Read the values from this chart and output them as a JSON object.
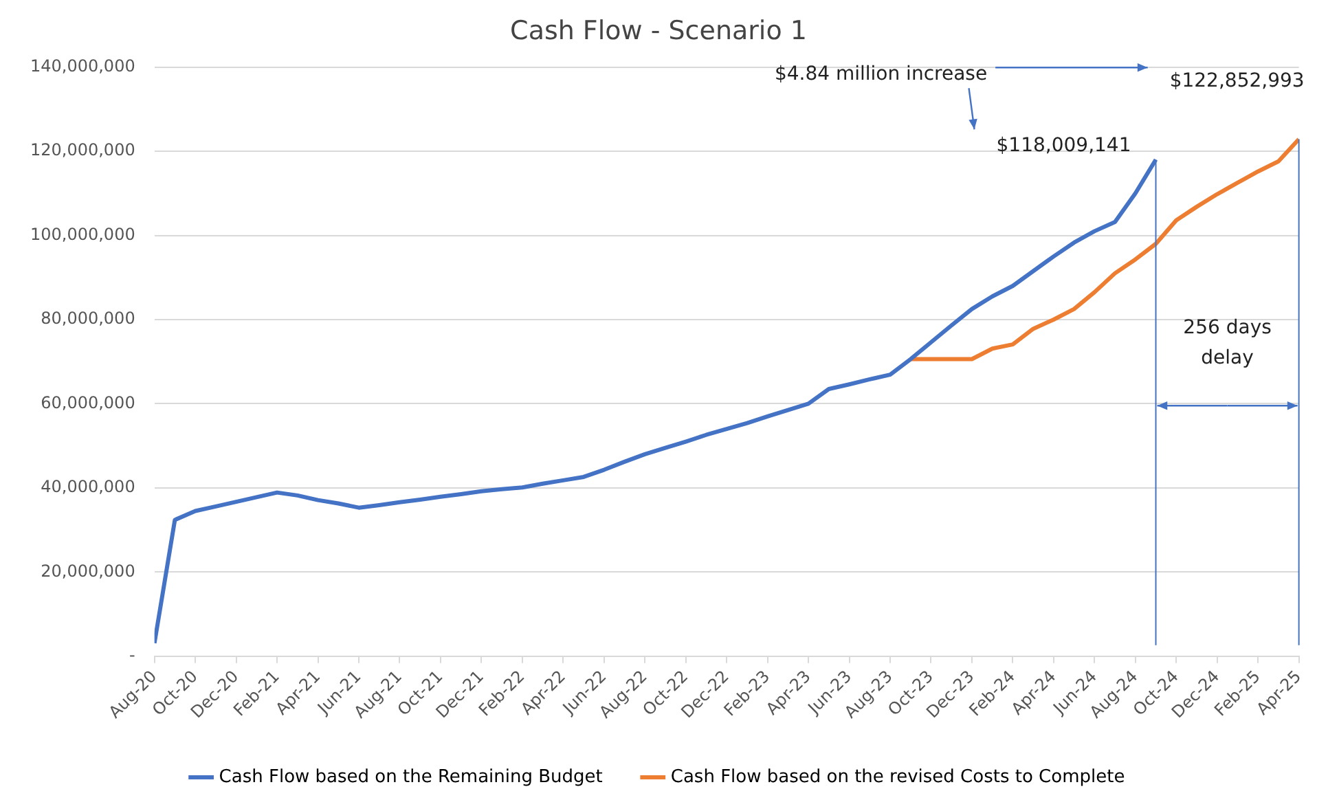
{
  "chart_data": {
    "type": "line",
    "title": "Cash Flow - Scenario 1",
    "x": [
      "2020-08",
      "2020-09",
      "2020-10",
      "2020-11",
      "2020-12",
      "2021-01",
      "2021-02",
      "2021-03",
      "2021-04",
      "2021-05",
      "2021-06",
      "2021-07",
      "2021-08",
      "2021-09",
      "2021-10",
      "2021-11",
      "2021-12",
      "2022-01",
      "2022-02",
      "2022-03",
      "2022-04",
      "2022-05",
      "2022-06",
      "2022-07",
      "2022-08",
      "2022-09",
      "2022-10",
      "2022-11",
      "2022-12",
      "2023-01",
      "2023-02",
      "2023-03",
      "2023-04",
      "2023-05",
      "2023-06",
      "2023-07",
      "2023-08",
      "2023-09",
      "2023-10",
      "2023-11",
      "2023-12",
      "2024-01",
      "2024-02",
      "2024-03",
      "2024-04",
      "2024-05",
      "2024-06",
      "2024-07",
      "2024-08",
      "2024-09",
      "2024-10",
      "2024-11",
      "2024-12",
      "2025-01",
      "2025-02",
      "2025-03",
      "2025-04"
    ],
    "series": [
      {
        "name": "Cash Flow based on the Remaining Budget",
        "color": "#4472c4",
        "values": [
          3100000,
          32400000,
          34500000,
          35600000,
          36700000,
          37800000,
          38900000,
          38200000,
          37100000,
          36300000,
          35300000,
          35900000,
          36600000,
          37200000,
          37900000,
          38500000,
          39200000,
          39700000,
          40100000,
          41000000,
          41800000,
          42600000,
          44300000,
          46200000,
          48000000,
          49500000,
          51000000,
          52600000,
          54000000,
          55400000,
          57000000,
          58500000,
          60000000,
          63500000,
          64600000,
          65800000,
          66900000,
          70600000,
          74600000,
          78600000,
          82500000,
          85500000,
          88000000,
          91500000,
          95000000,
          98300000,
          101000000,
          103200000,
          110000000,
          118009141,
          null,
          null,
          null,
          null,
          null,
          null,
          null
        ]
      },
      {
        "name": "Cash Flow based on the revised Costs to Complete",
        "color": "#ed7d31",
        "values": [
          null,
          null,
          null,
          null,
          null,
          null,
          null,
          null,
          null,
          null,
          null,
          null,
          null,
          null,
          null,
          null,
          null,
          null,
          null,
          null,
          null,
          null,
          null,
          null,
          null,
          null,
          null,
          null,
          null,
          null,
          null,
          null,
          null,
          null,
          null,
          null,
          null,
          70600000,
          70600000,
          70600000,
          70600000,
          73100000,
          74100000,
          77800000,
          80000000,
          82500000,
          86500000,
          91000000,
          94300000,
          98000000,
          103600000,
          106800000,
          109800000,
          112500000,
          115200000,
          117600000,
          122852993
        ]
      }
    ],
    "xlim": [
      "2020-08",
      "2025-04"
    ],
    "xticks": [
      {
        "value": "2020-08",
        "label": "Aug-20"
      },
      {
        "value": "2020-10",
        "label": "Oct-20"
      },
      {
        "value": "2020-12",
        "label": "Dec-20"
      },
      {
        "value": "2021-02",
        "label": "Feb-21"
      },
      {
        "value": "2021-04",
        "label": "Apr-21"
      },
      {
        "value": "2021-06",
        "label": "Jun-21"
      },
      {
        "value": "2021-08",
        "label": "Aug-21"
      },
      {
        "value": "2021-10",
        "label": "Oct-21"
      },
      {
        "value": "2021-12",
        "label": "Dec-21"
      },
      {
        "value": "2022-02",
        "label": "Feb-22"
      },
      {
        "value": "2022-04",
        "label": "Apr-22"
      },
      {
        "value": "2022-06",
        "label": "Jun-22"
      },
      {
        "value": "2022-08",
        "label": "Aug-22"
      },
      {
        "value": "2022-10",
        "label": "Oct-22"
      },
      {
        "value": "2022-12",
        "label": "Dec-22"
      },
      {
        "value": "2023-02",
        "label": "Feb-23"
      },
      {
        "value": "2023-04",
        "label": "Apr-23"
      },
      {
        "value": "2023-06",
        "label": "Jun-23"
      },
      {
        "value": "2023-08",
        "label": "Aug-23"
      },
      {
        "value": "2023-10",
        "label": "Oct-23"
      },
      {
        "value": "2023-12",
        "label": "Dec-23"
      },
      {
        "value": "2024-02",
        "label": "Feb-24"
      },
      {
        "value": "2024-04",
        "label": "Apr-24"
      },
      {
        "value": "2024-06",
        "label": "Jun-24"
      },
      {
        "value": "2024-08",
        "label": "Aug-24"
      },
      {
        "value": "2024-10",
        "label": "Oct-24"
      },
      {
        "value": "2024-12",
        "label": "Dec-24"
      },
      {
        "value": "2025-02",
        "label": "Feb-25"
      },
      {
        "value": "2025-04",
        "label": "Apr-25"
      }
    ],
    "ylim": [
      0,
      140000000
    ],
    "yticks": [
      {
        "value": 0,
        "label": "-"
      },
      {
        "value": 20000000,
        "label": "20,000,000"
      },
      {
        "value": 40000000,
        "label": "40,000,000"
      },
      {
        "value": 60000000,
        "label": "60,000,000"
      },
      {
        "value": 80000000,
        "label": "80,000,000"
      },
      {
        "value": 100000000,
        "label": "100,000,000"
      },
      {
        "value": 120000000,
        "label": "120,000,000"
      },
      {
        "value": 140000000,
        "label": "140,000,000"
      }
    ],
    "grid": "y",
    "legend": "bottom",
    "marker": "none",
    "line_style": "solid",
    "ref_lines": [
      {
        "axis": "x",
        "value": "2024-09",
        "color": "#4472c4"
      },
      {
        "axis": "x",
        "value": "2025-04",
        "color": "#4472c4"
      }
    ],
    "annotations": [
      "$4.84 million increase",
      {
        "text": "$118,009,141",
        "x": "2024-09",
        "y": 118009141
      },
      {
        "text": "$122,852,993",
        "x": "2025-04",
        "y": 122852993
      },
      "256 days delay"
    ]
  }
}
